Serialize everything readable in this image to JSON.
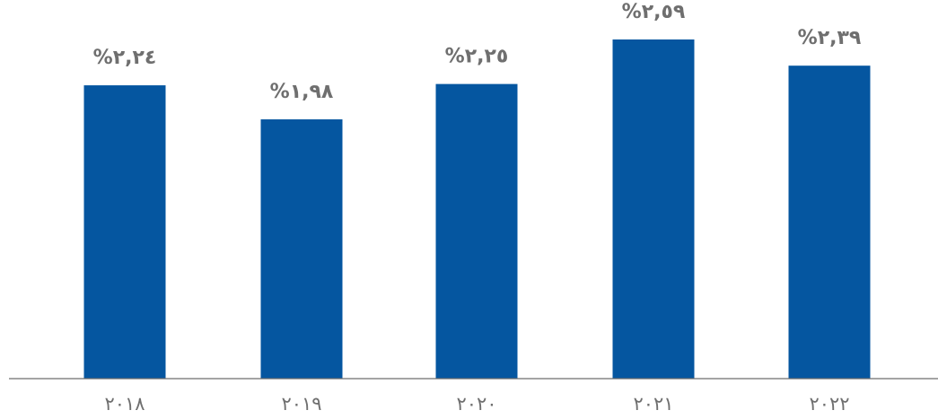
{
  "chart_data": {
    "type": "bar",
    "title": "",
    "xlabel": "",
    "ylabel": "",
    "categories": [
      "٢٠١٨",
      "٢٠١٩",
      "٢٠٢٠",
      "٢٠٢١",
      "٢٠٢٢"
    ],
    "values": [
      2.24,
      1.98,
      2.25,
      2.59,
      2.39
    ],
    "data_labels": [
      "%٢,٢٤",
      "%١,٩٨",
      "%٢,٢٥",
      "%٢,٥٩",
      "%٢,٣٩"
    ],
    "unit": "%",
    "ylim": [
      0,
      2.59
    ],
    "grid": false,
    "legend": "none",
    "colors": {
      "bar": "#0556A0",
      "label": "#6F6F6F",
      "axis": "#6E6E6E"
    }
  }
}
